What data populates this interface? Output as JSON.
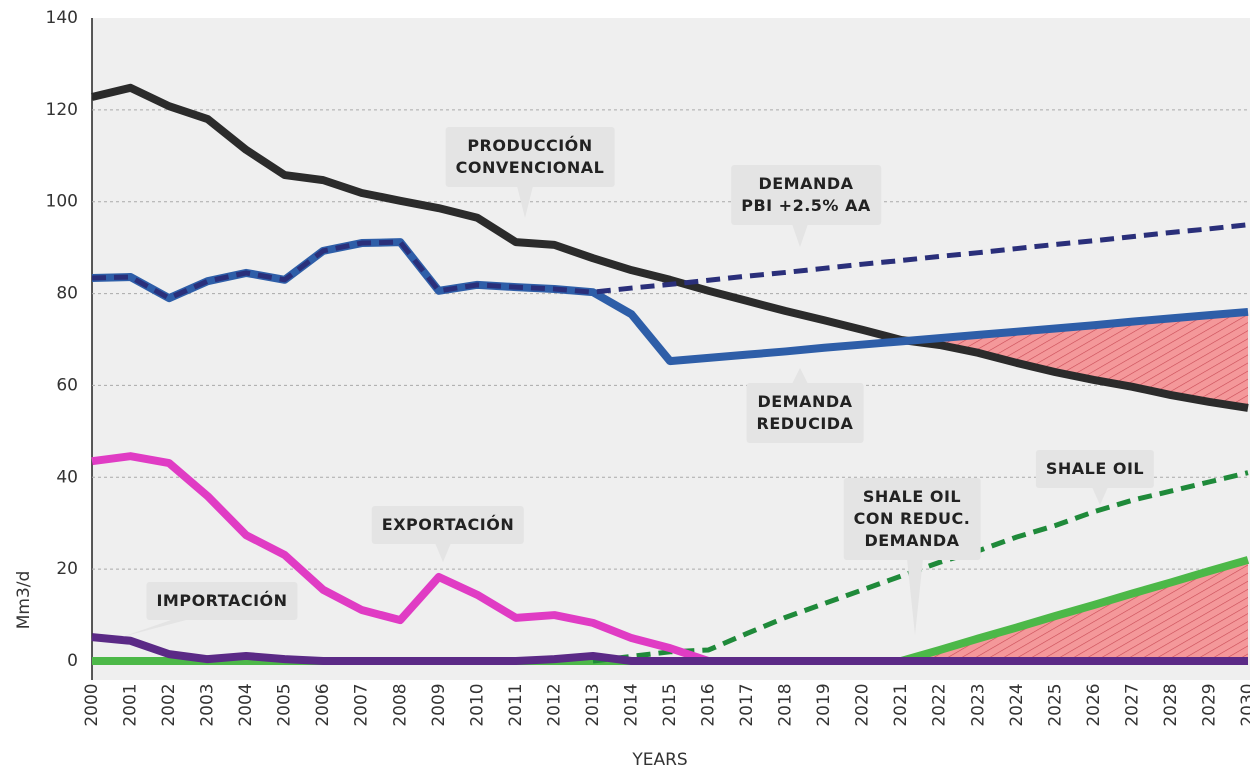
{
  "chart_data": {
    "type": "line",
    "y_label": "Mm3/d",
    "x_label": "YEARS",
    "ylim": [
      0,
      140
    ],
    "yticks": [
      0,
      20,
      40,
      60,
      80,
      100,
      120,
      140
    ],
    "grid": true,
    "categories": [
      "2000",
      "2001",
      "2002",
      "2003",
      "2004",
      "2005",
      "2006",
      "2007",
      "2008",
      "2009",
      "2010",
      "2011",
      "2012",
      "2013",
      "2014",
      "2015",
      "2016",
      "2017",
      "2018",
      "2019",
      "2020",
      "2021",
      "2022",
      "2023",
      "2024",
      "2025",
      "2026",
      "2027",
      "2028",
      "2029",
      "2030"
    ],
    "shade_color": "#f4989a",
    "shaded_between": [
      [
        3,
        2
      ],
      [
        0,
        6
      ]
    ],
    "series": [
      {
        "name": "SHALE OIL\nCON REDUC.\nDEMANDA",
        "color": "#4cb848",
        "dashed": false,
        "values": [
          0,
          0,
          0,
          0,
          0,
          0,
          0,
          0,
          0,
          0,
          0,
          0,
          0,
          0,
          0,
          0,
          0,
          0,
          0,
          0,
          0,
          0,
          2.4,
          4.9,
          7.3,
          9.8,
          12.2,
          14.7,
          17.1,
          19.6,
          22
        ]
      },
      {
        "name": "SHALE OIL",
        "color": "#1f8a3a",
        "dashed": true,
        "values": [
          null,
          null,
          null,
          null,
          null,
          null,
          null,
          null,
          null,
          null,
          null,
          null,
          null,
          0,
          1,
          2,
          2.4,
          6,
          9.5,
          12.5,
          15.5,
          18.5,
          21.5,
          24,
          27,
          29.5,
          32.5,
          35,
          37,
          39,
          41
        ]
      },
      {
        "name": "PRODUCCIÓN\nCONVENCIONAL",
        "color": "#2b2b2b",
        "dashed": false,
        "values": [
          122.8,
          124.8,
          120.8,
          118,
          111.3,
          105.8,
          104.7,
          101.9,
          100.2,
          98.6,
          96.5,
          91.2,
          90.6,
          87.7,
          85.1,
          83,
          80.6,
          78.4,
          76.2,
          74.2,
          72.1,
          69.9,
          68.8,
          67.1,
          64.9,
          62.9,
          61.2,
          59.7,
          57.9,
          56.4,
          55.1
        ]
      },
      {
        "name": "DEMANDA\nREDUCIDA",
        "color": "#2e5ea8",
        "dashed": false,
        "values": [
          83.4,
          83.6,
          79,
          82.7,
          84.5,
          83,
          89.3,
          91,
          91.2,
          80.6,
          81.9,
          81.4,
          81,
          80.3,
          75.5,
          65.3,
          66,
          66.7,
          67.4,
          68.2,
          68.9,
          69.6,
          70.3,
          71,
          71.7,
          72.4,
          73.1,
          73.9,
          74.6,
          75.3,
          76
        ]
      },
      {
        "name": "DEMANDA\nPBI +2.5% AA",
        "color": "#2a2f7a",
        "dashed": true,
        "values": [
          83.4,
          83.6,
          79,
          82.7,
          84.5,
          83,
          89.3,
          91,
          91.2,
          80.6,
          81.9,
          81.4,
          81,
          80.3,
          81.2,
          82,
          82.9,
          83.8,
          84.6,
          85.5,
          86.4,
          87.2,
          88.1,
          88.9,
          89.8,
          90.7,
          91.5,
          92.4,
          93.3,
          94.1,
          95
        ]
      },
      {
        "name": "EXPORTACIÓN",
        "color": "#e03cc4",
        "dashed": false,
        "values": [
          43.5,
          44.6,
          43.1,
          35.9,
          27.4,
          23.1,
          15.5,
          11.1,
          8.9,
          18.3,
          14.4,
          9.4,
          10,
          8.3,
          5,
          2.8,
          0,
          null,
          null,
          null,
          null,
          null,
          null,
          null,
          null,
          null,
          null,
          null,
          null,
          null,
          null
        ]
      },
      {
        "name": "IMPORTACIÓN",
        "color": "#5b2a86",
        "dashed": false,
        "values": [
          5.2,
          4.4,
          1.5,
          0.4,
          1.1,
          0.4,
          0,
          0,
          0,
          0,
          0,
          0,
          0.4,
          1.1,
          0,
          0,
          0,
          0,
          0,
          0,
          0,
          0,
          0,
          0,
          0,
          0,
          0,
          0,
          0,
          0,
          0
        ]
      }
    ]
  }
}
